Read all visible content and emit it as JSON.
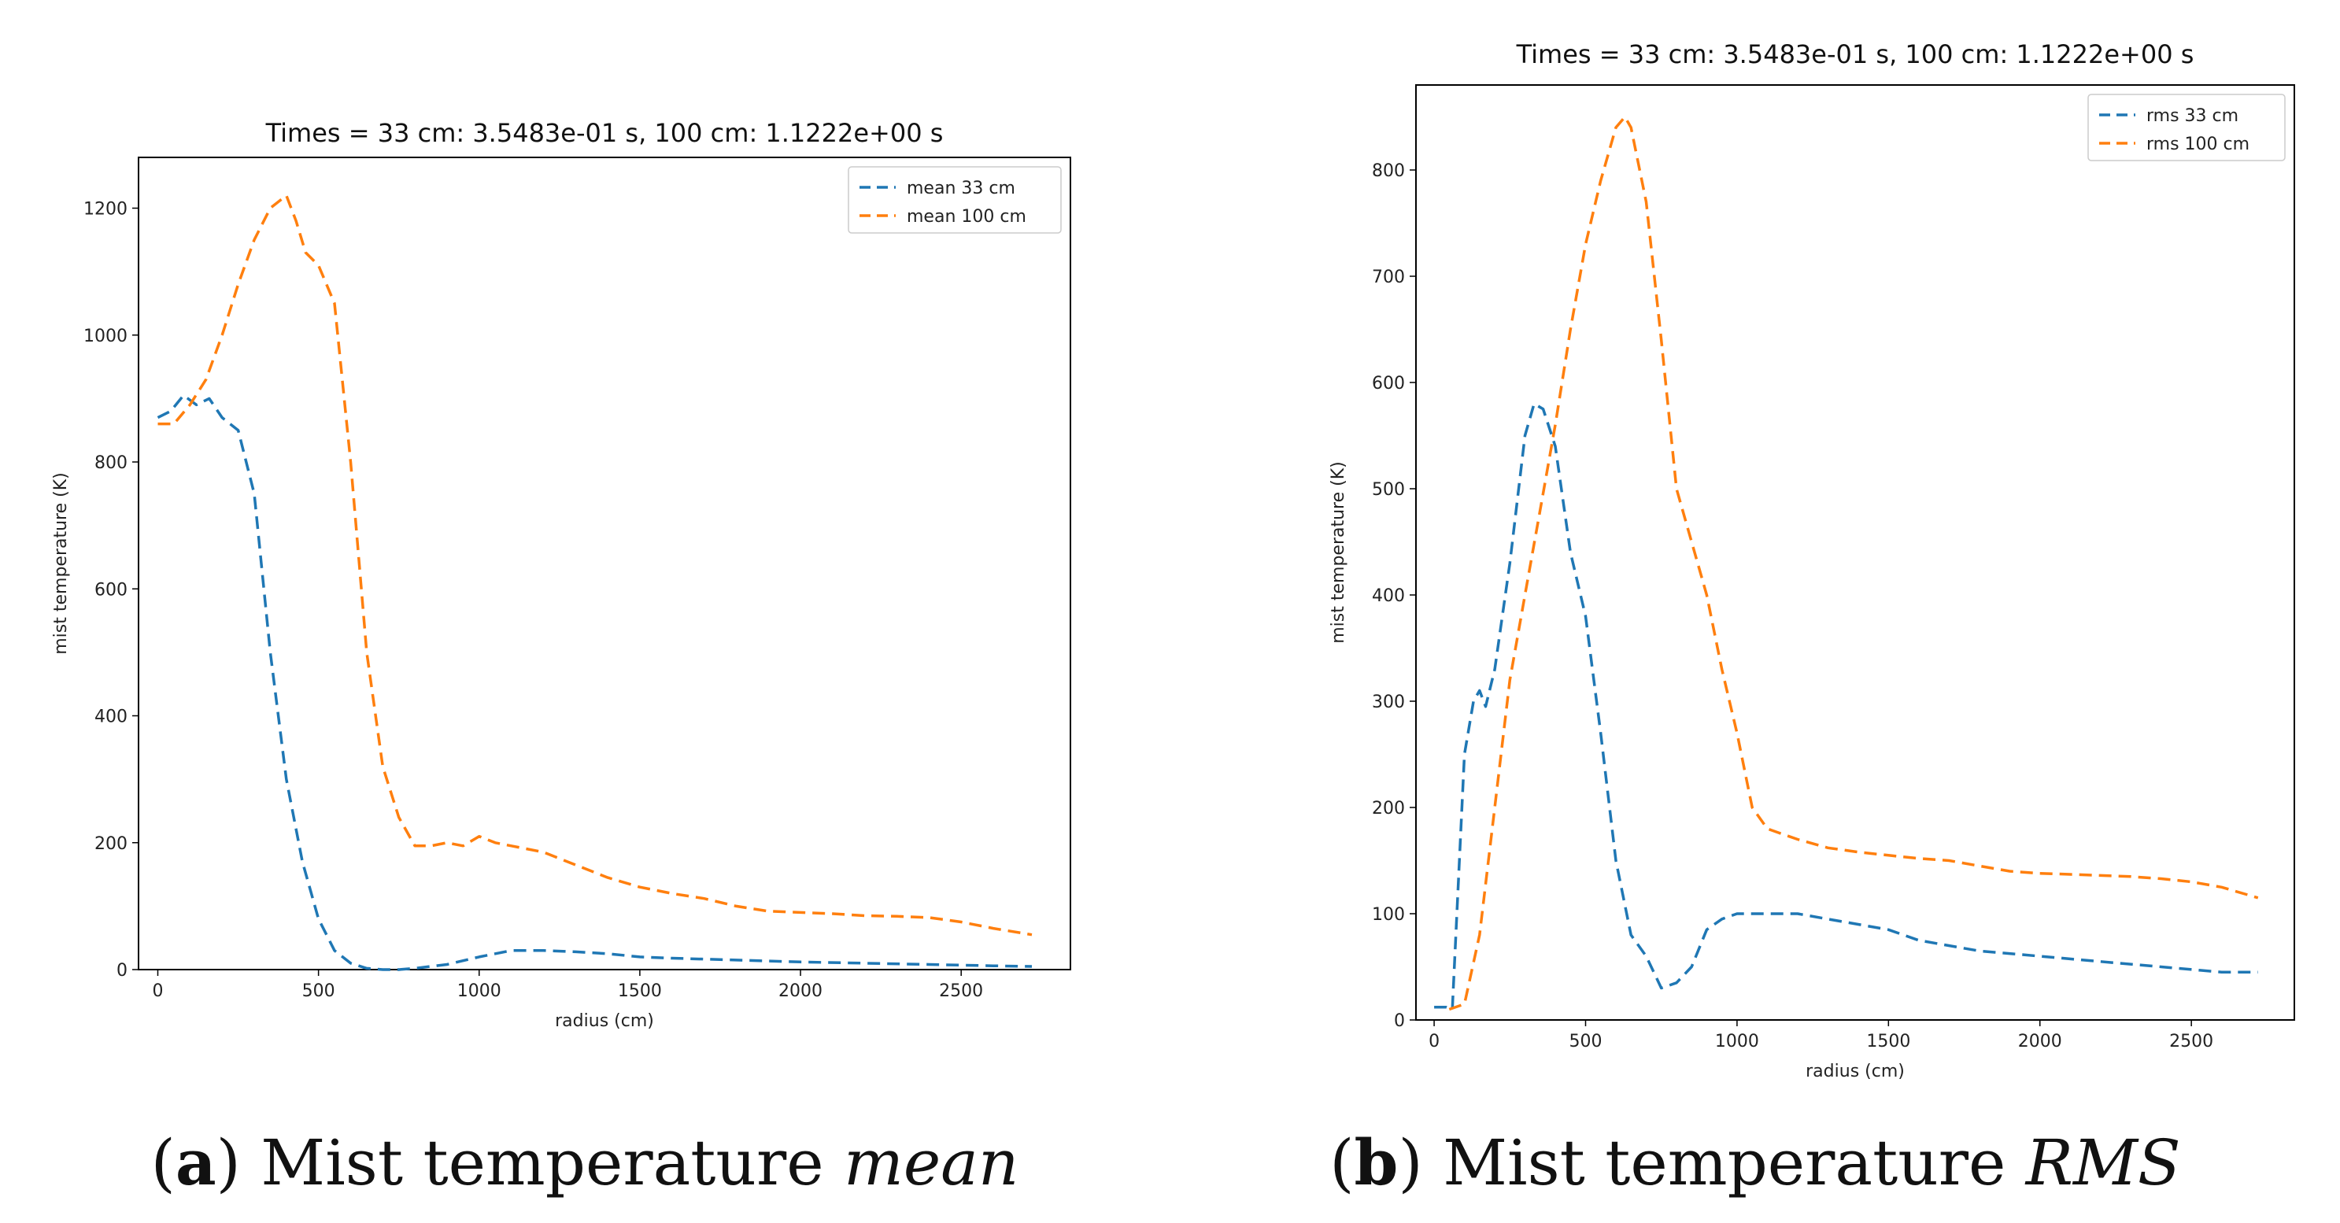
{
  "chart_data": [
    {
      "type": "line",
      "title": "Times = 33 cm:   3.5483e-01 s,   100 cm:   1.1222e+00 s",
      "xlabel": "radius (cm)",
      "ylabel": "mist temperature (K)",
      "xlim": [
        -60,
        2840
      ],
      "ylim": [
        0,
        1280
      ],
      "xticks": [
        0,
        500,
        1000,
        1500,
        2000,
        2500
      ],
      "yticks": [
        0,
        200,
        400,
        600,
        800,
        1000,
        1200
      ],
      "legend_position": "top-right",
      "series": [
        {
          "name": "mean 33 cm",
          "color": "#1f77b4",
          "style": "dashed",
          "x": [
            0,
            40,
            80,
            120,
            160,
            200,
            250,
            300,
            350,
            400,
            450,
            500,
            550,
            600,
            650,
            700,
            750,
            800,
            900,
            1000,
            1100,
            1200,
            1300,
            1400,
            1500,
            1600,
            1800,
            2000,
            2200,
            2400,
            2600,
            2720
          ],
          "y": [
            870,
            880,
            905,
            890,
            900,
            870,
            850,
            750,
            500,
            300,
            170,
            80,
            30,
            10,
            2,
            0,
            0,
            2,
            8,
            20,
            30,
            30,
            28,
            25,
            20,
            18,
            15,
            12,
            10,
            8,
            6,
            5
          ]
        },
        {
          "name": "mean 100 cm",
          "color": "#ff7f0e",
          "style": "dashed",
          "x": [
            0,
            50,
            100,
            150,
            200,
            250,
            300,
            350,
            400,
            430,
            460,
            500,
            550,
            600,
            650,
            700,
            750,
            800,
            850,
            900,
            950,
            1000,
            1050,
            1100,
            1200,
            1300,
            1400,
            1500,
            1600,
            1700,
            1800,
            1900,
            2000,
            2100,
            2200,
            2300,
            2400,
            2500,
            2600,
            2720
          ],
          "y": [
            860,
            860,
            890,
            930,
            1000,
            1080,
            1150,
            1200,
            1220,
            1180,
            1130,
            1110,
            1050,
            800,
            500,
            320,
            240,
            195,
            195,
            200,
            195,
            210,
            200,
            195,
            185,
            165,
            145,
            130,
            120,
            112,
            100,
            92,
            90,
            88,
            85,
            84,
            82,
            75,
            65,
            55
          ]
        }
      ]
    },
    {
      "type": "line",
      "title": "Times = 33 cm:   3.5483e-01 s,   100 cm:   1.1222e+00 s",
      "xlabel": "radius (cm)",
      "ylabel": "mist temperature (K)",
      "xlim": [
        -60,
        2840
      ],
      "ylim": [
        0,
        880
      ],
      "xticks": [
        0,
        500,
        1000,
        1500,
        2000,
        2500
      ],
      "yticks": [
        0,
        100,
        200,
        300,
        400,
        500,
        600,
        700,
        800
      ],
      "legend_position": "top-right",
      "series": [
        {
          "name": "rms 33 cm",
          "color": "#1f77b4",
          "style": "dashed",
          "x": [
            0,
            40,
            60,
            100,
            130,
            150,
            170,
            200,
            250,
            300,
            330,
            360,
            400,
            450,
            500,
            550,
            600,
            650,
            700,
            750,
            800,
            850,
            900,
            950,
            1000,
            1100,
            1200,
            1300,
            1400,
            1500,
            1600,
            1800,
            2000,
            2200,
            2400,
            2600,
            2720
          ],
          "y": [
            12,
            12,
            10,
            250,
            300,
            310,
            295,
            330,
            430,
            550,
            580,
            575,
            540,
            440,
            380,
            270,
            150,
            80,
            60,
            30,
            35,
            50,
            85,
            95,
            100,
            100,
            100,
            95,
            90,
            85,
            75,
            65,
            60,
            55,
            50,
            45,
            45
          ]
        },
        {
          "name": "rms 100 cm",
          "color": "#ff7f0e",
          "style": "dashed",
          "x": [
            50,
            100,
            150,
            200,
            250,
            300,
            350,
            400,
            450,
            500,
            550,
            600,
            630,
            650,
            700,
            750,
            800,
            850,
            900,
            950,
            1000,
            1050,
            1100,
            1150,
            1200,
            1300,
            1400,
            1500,
            1600,
            1700,
            1800,
            1900,
            2000,
            2100,
            2200,
            2300,
            2400,
            2500,
            2600,
            2720
          ],
          "y": [
            10,
            15,
            80,
            200,
            320,
            400,
            480,
            560,
            650,
            730,
            790,
            840,
            850,
            840,
            770,
            640,
            500,
            450,
            400,
            330,
            270,
            200,
            180,
            175,
            170,
            162,
            158,
            155,
            152,
            150,
            145,
            140,
            138,
            137,
            136,
            135,
            133,
            130,
            125,
            115
          ]
        }
      ]
    }
  ],
  "captions": [
    {
      "letter": "a",
      "text": " Mist temperature ",
      "emphasis": "mean"
    },
    {
      "letter": "b",
      "text": " Mist temperature ",
      "emphasis": "RMS"
    }
  ]
}
